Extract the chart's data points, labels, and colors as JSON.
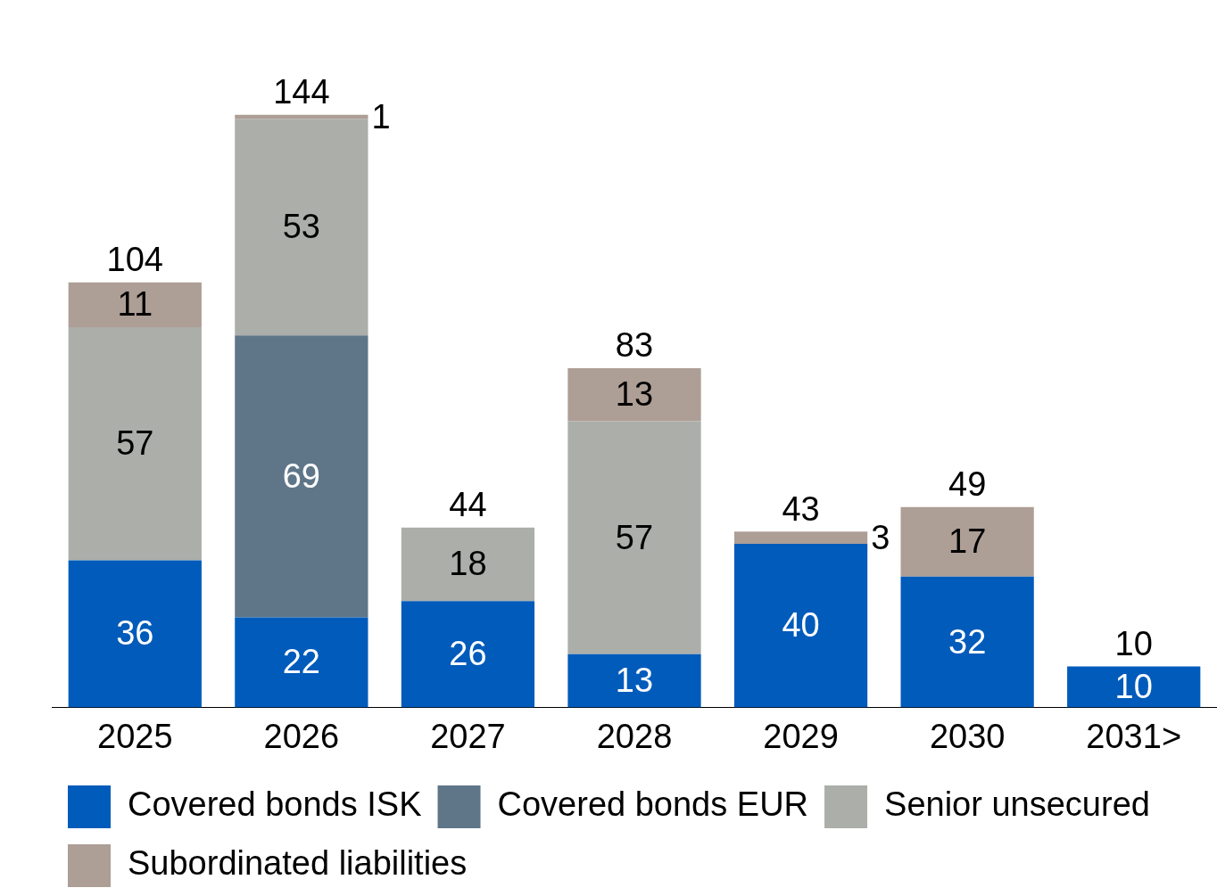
{
  "chart_data": {
    "type": "bar",
    "stacked": true,
    "categories": [
      "2025",
      "2026",
      "2027",
      "2028",
      "2029",
      "2030",
      "2031>"
    ],
    "series": [
      {
        "name": "Covered bonds ISK",
        "color": "#005bbb",
        "values": [
          36,
          22,
          26,
          13,
          40,
          32,
          10
        ]
      },
      {
        "name": "Covered bonds EUR",
        "color": "#5f7689",
        "values": [
          null,
          69,
          null,
          null,
          null,
          null,
          null
        ]
      },
      {
        "name": "Senior unsecured",
        "color": "#acaea9",
        "values": [
          57,
          53,
          18,
          57,
          null,
          null,
          null
        ]
      },
      {
        "name": "Subordinated liabilities",
        "color": "#ad9e96",
        "values": [
          11,
          1,
          null,
          13,
          3,
          17,
          null
        ]
      }
    ],
    "data_labels": true,
    "totals": [
      "104",
      "144",
      "44",
      "83",
      "43",
      "49",
      "10"
    ],
    "legend": "bottom",
    "grid": false
  }
}
